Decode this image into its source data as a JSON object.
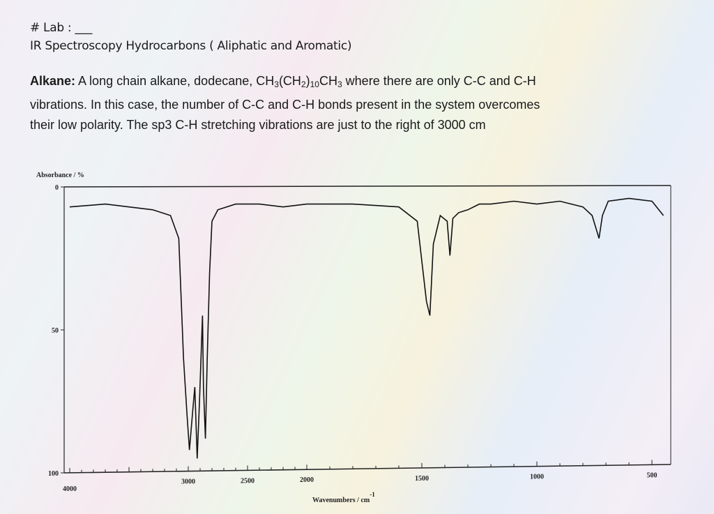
{
  "header": {
    "lab": "# Lab : ___",
    "title": "IR Spectroscopy Hydrocarbons ( Aliphatic and Aromatic)"
  },
  "paragraph": {
    "label": "Alkane:",
    "line1_a": "A long chain ",
    "line1_b": "alkane",
    "line1_c": ", dodecane, CH",
    "sub1": "3",
    "mid1": "(CH",
    "sub2": "2",
    "mid2": ")",
    "sub3": "10",
    "mid3": "CH",
    "sub4": "3",
    "line1_d": " where there are only C-C and C-H",
    "line2": "vibrations. In this case, the number of C-C and C-H bonds present in the system overcomes",
    "line3": "their low polarity. The sp3 C-H stretching vibrations are just to the right of 3000 cm"
  },
  "chart_data": {
    "type": "line",
    "title": "",
    "xlabel": "Wavenumbers / cm",
    "xlabel_sup": "-1",
    "ylabel": "Absorbance / %",
    "xlim": [
      4000,
      430
    ],
    "ylim": [
      0,
      100
    ],
    "y_inverted": true,
    "x_scale_change_at": 2000,
    "x_ticks": [
      "4000",
      "3000",
      "2500",
      "2000",
      "1500",
      "1000",
      "500"
    ],
    "y_ticks": [
      "0",
      "50",
      "100"
    ],
    "grid": false,
    "color": "#111111",
    "series": [
      {
        "x": [
          4000,
          3700,
          3500,
          3300,
          3150,
          3080,
          3040,
          3010,
          2990,
          2962,
          2945,
          2925,
          2905,
          2880,
          2872,
          2855,
          2840,
          2820,
          2800,
          2750,
          2600,
          2400,
          2200,
          2000,
          1800,
          1600,
          1520,
          1480,
          1465,
          1450,
          1420,
          1390,
          1378,
          1365,
          1340,
          1300,
          1250,
          1200,
          1100,
          1000,
          900,
          800,
          760,
          730,
          715,
          690,
          600,
          500,
          450
        ],
        "y": [
          7,
          6,
          7,
          8,
          10,
          18,
          60,
          80,
          92,
          78,
          70,
          95,
          75,
          45,
          70,
          88,
          60,
          30,
          12,
          8,
          6,
          6,
          7,
          6,
          6,
          7,
          12,
          40,
          45,
          20,
          10,
          12,
          24,
          11,
          9,
          8,
          6,
          6,
          5,
          6,
          5,
          7,
          10,
          18,
          10,
          5,
          4,
          5,
          10
        ]
      }
    ]
  }
}
